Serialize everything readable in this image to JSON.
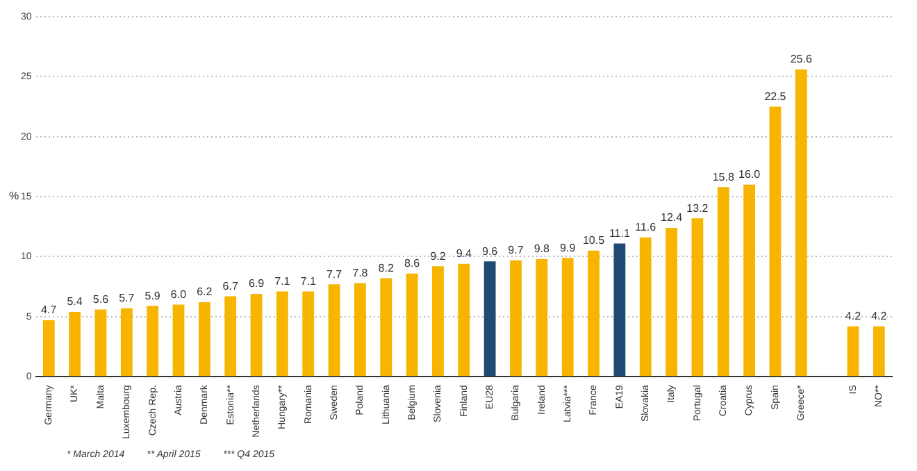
{
  "chart_data": {
    "type": "bar",
    "ylabel": "%",
    "categories": [
      "Germany",
      "UK*",
      "Malta",
      "Luxembourg",
      "Czech Rep.",
      "Austria",
      "Denmark",
      "Estonia**",
      "Netherlands",
      "Hungary**",
      "Romania",
      "Sweden",
      "Poland",
      "Lithuania",
      "Belgium",
      "Slovenia",
      "Finland",
      "EU28",
      "Bulgaria",
      "Ireland",
      "Latvia***",
      "France",
      "EA19",
      "Slovakia",
      "Italy",
      "Portugal",
      "Croatia",
      "Cyprus",
      "Spain",
      "Greece*",
      null,
      "IS",
      "NO**"
    ],
    "values": [
      4.7,
      5.4,
      5.6,
      5.7,
      5.9,
      6.0,
      6.2,
      6.7,
      6.9,
      7.1,
      7.1,
      7.7,
      7.8,
      8.2,
      8.6,
      9.2,
      9.4,
      9.6,
      9.7,
      9.8,
      9.9,
      10.5,
      11.1,
      11.6,
      12.4,
      13.2,
      15.8,
      16.0,
      22.5,
      25.6,
      null,
      4.2,
      4.2
    ],
    "colors": [
      "#f7b500",
      "#f7b500",
      "#f7b500",
      "#f7b500",
      "#f7b500",
      "#f7b500",
      "#f7b500",
      "#f7b500",
      "#f7b500",
      "#f7b500",
      "#f7b500",
      "#f7b500",
      "#f7b500",
      "#f7b500",
      "#f7b500",
      "#f7b500",
      "#f7b500",
      "#1f4a73",
      "#f7b500",
      "#f7b500",
      "#f7b500",
      "#f7b500",
      "#1f4a73",
      "#f7b500",
      "#f7b500",
      "#f7b500",
      "#f7b500",
      "#f7b500",
      "#f7b500",
      "#f7b500",
      "#f7b500",
      "#f7b500",
      "#f7b500"
    ],
    "value_labels": [
      "4.7",
      "5.4",
      "5.6",
      "5.7",
      "5.9",
      "6.0",
      "6.2",
      "6.7",
      "6.9",
      "7.1",
      "7.1",
      "7.7",
      "7.8",
      "8.2",
      "8.6",
      "9.2",
      "9.4",
      "9.6",
      "9.7",
      "9.8",
      "9.9",
      "10.5",
      "11.1",
      "11.6",
      "12.4",
      "13.2",
      "15.8",
      "16.0",
      "22.5",
      "25.6",
      null,
      "4.2",
      "4.2"
    ],
    "ylim": [
      0,
      30
    ],
    "yticks": [
      0,
      5,
      10,
      15,
      20,
      25,
      30
    ],
    "grid": "y",
    "legend": false,
    "annotations": [
      "* March 2014",
      "** April 2015",
      "*** Q4 2015"
    ]
  }
}
